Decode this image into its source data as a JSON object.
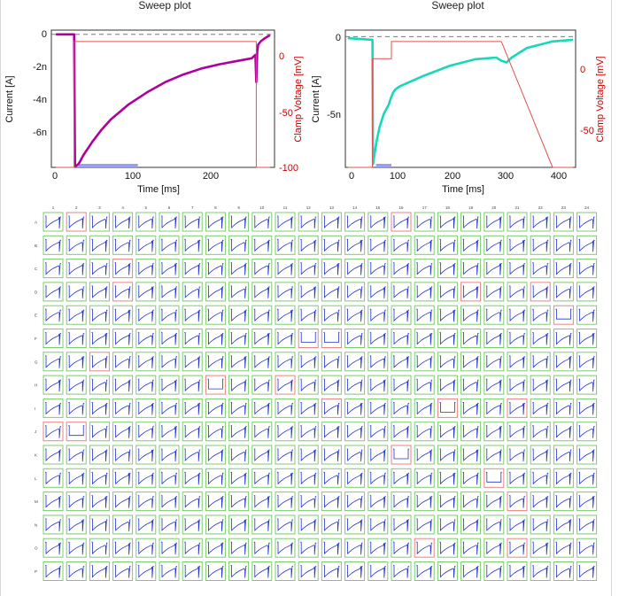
{
  "colors": {
    "current_left": "#b0009b",
    "current_right": "#18d8b8",
    "voltage": "#e05050",
    "highlight_bar": "#9aa0ee",
    "cell_ok": "#7ccc6f",
    "cell_fail": "#e68585",
    "trace": "#2233cc"
  },
  "plots": [
    {
      "title": "Sweep plot",
      "xlabel": "Time [ms]",
      "ylabel": "Current [A]",
      "y2label": "Clamp Voltage [mV]",
      "x_ticks": [
        "0",
        "100",
        "200"
      ],
      "y_ticks": [
        "0",
        "-2n",
        "-4n",
        "-6n"
      ],
      "y2_ticks": [
        "0",
        "-50",
        "-100"
      ]
    },
    {
      "title": "Sweep plot",
      "xlabel": "Time [ms]",
      "ylabel": "Current [A]",
      "y2label": "Clamp Voltage [mV]",
      "x_ticks": [
        "0",
        "100",
        "200",
        "300",
        "400"
      ],
      "y_ticks": [
        "0",
        "-5n"
      ],
      "y2_ticks": [
        "0",
        "-50"
      ]
    }
  ],
  "chart_data": [
    {
      "type": "line",
      "title": "Sweep plot",
      "xlabel": "Time [ms]",
      "ylabel": "Current [A]",
      "y2label": "Clamp Voltage [mV]",
      "xlim": [
        -5,
        240
      ],
      "ylim": [
        -7.8e-09,
        2.5e-10
      ],
      "y2lim": [
        -100,
        20
      ],
      "series": [
        {
          "axis": "y",
          "x": [
            0,
            20,
            21,
            22,
            24,
            26,
            30,
            35,
            40,
            50,
            60,
            80,
            100,
            120,
            140,
            160,
            180,
            200,
            215,
            219,
            220,
            221,
            222,
            225,
            230,
            235
          ],
          "y": [
            0,
            0,
            -7.7e-09,
            -7.7e-09,
            -7.65e-09,
            -7.5e-09,
            -7.1e-09,
            -6.7e-09,
            -6.3e-09,
            -5.6e-09,
            -5e-09,
            -4.1e-09,
            -3.4e-09,
            -2.8e-09,
            -2.35e-09,
            -2e-09,
            -1.75e-09,
            -1.55e-09,
            -1.4e-09,
            -1.2e-09,
            -2.8e-09,
            -1e-09,
            -6e-10,
            -4e-10,
            -2e-10,
            -5e-11
          ]
        },
        {
          "axis": "y2",
          "x": [
            0,
            20,
            20,
            220,
            220,
            235
          ],
          "y": [
            -100,
            -100,
            10,
            10,
            -100,
            -100
          ]
        }
      ],
      "highlight": {
        "x": [
          25,
          90
        ]
      }
    },
    {
      "type": "line",
      "title": "Sweep plot",
      "xlabel": "Time [ms]",
      "ylabel": "Current [A]",
      "y2label": "Clamp Voltage [mV]",
      "xlim": [
        -5,
        445
      ],
      "ylim": [
        -8.1e-09,
        4e-10
      ],
      "y2lim": [
        -100,
        20
      ],
      "series": [
        {
          "axis": "y",
          "x": [
            0,
            48,
            49,
            50,
            52,
            56,
            62,
            70,
            80,
            84,
            88,
            92,
            100,
            150,
            200,
            250,
            290,
            300,
            310,
            320,
            350,
            400,
            440
          ],
          "y": [
            -1e-10,
            -2e-10,
            -7.9e-09,
            -7.7e-09,
            -7.3e-09,
            -6.5e-09,
            -5.6e-09,
            -4.8e-09,
            -4.2e-09,
            -3.8e-09,
            -3.5e-09,
            -3.3e-09,
            -3.1e-09,
            -2.4e-09,
            -1.8e-09,
            -1.4e-09,
            -1.3e-09,
            -1.5e-09,
            -1.6e-09,
            -1.3e-09,
            -7e-10,
            -3e-10,
            -2e-10
          ]
        },
        {
          "axis": "y2",
          "x": [
            0,
            48,
            48,
            85,
            85,
            300,
            400,
            440
          ],
          "y": [
            -100,
            -100,
            -5,
            -5,
            10,
            10,
            -100,
            -100
          ]
        }
      ],
      "highlight": {
        "x": [
          55,
          85
        ]
      }
    }
  ],
  "grid": {
    "columns": [
      "1",
      "2",
      "3",
      "4",
      "5",
      "6",
      "7",
      "8",
      "9",
      "10",
      "11",
      "12",
      "13",
      "14",
      "15",
      "16",
      "17",
      "18",
      "19",
      "20",
      "21",
      "22",
      "23",
      "24"
    ],
    "rows": [
      "A",
      "B",
      "C",
      "D",
      "E",
      "F",
      "G",
      "H",
      "I",
      "J",
      "K",
      "L",
      "M",
      "N",
      "O",
      "P"
    ],
    "failed_wells": [
      "A2",
      "A16",
      "C4",
      "D4",
      "D19",
      "D22",
      "E23",
      "F12",
      "F13",
      "G3",
      "H8",
      "H11",
      "I13",
      "I18",
      "I21",
      "J1",
      "J2",
      "K16",
      "L20",
      "M21",
      "O17",
      "O21"
    ],
    "alt_trace_wells": [
      "F12",
      "F13",
      "H8",
      "E23",
      "I18",
      "L20",
      "K16",
      "J2"
    ]
  }
}
